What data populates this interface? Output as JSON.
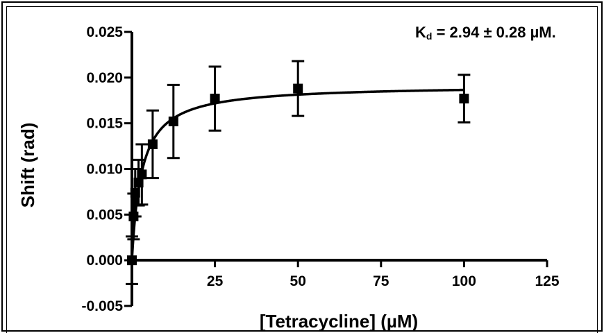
{
  "annotation": {
    "k": "K",
    "sub": "d",
    "rest": " = 2.94 ± 0.28 µM."
  },
  "chart_data": {
    "type": "scatter",
    "title": "",
    "xlabel": "[Tetracycline] (µM)",
    "ylabel": "Shift (rad)",
    "xlim": [
      0,
      125
    ],
    "ylim": [
      -0.005,
      0.025
    ],
    "x_ticks": [
      25,
      50,
      75,
      100,
      125
    ],
    "x_tick_labels": [
      "25",
      "50",
      "75",
      "100",
      "125"
    ],
    "y_ticks": [
      -0.005,
      0,
      0.005,
      0.01,
      0.015,
      0.02,
      0.025
    ],
    "y_tick_labels": [
      "-0.005",
      "0.000",
      "0.005",
      "0.010",
      "0.015",
      "0.020",
      "0.025"
    ],
    "grid": false,
    "legend": "none",
    "series": [
      {
        "points": [
          {
            "x": 0,
            "y": 0.0,
            "err": 0.0026
          },
          {
            "x": 0.5,
            "y": 0.0048,
            "err": 0.0025
          },
          {
            "x": 1,
            "y": 0.0074,
            "err": 0.0026
          },
          {
            "x": 2,
            "y": 0.0085,
            "err": 0.0025
          },
          {
            "x": 3,
            "y": 0.0094,
            "err": 0.0033
          },
          {
            "x": 6.25,
            "y": 0.0127,
            "err": 0.0037
          },
          {
            "x": 12.5,
            "y": 0.0152,
            "err": 0.004
          },
          {
            "x": 25,
            "y": 0.0177,
            "err": 0.0035
          },
          {
            "x": 50,
            "y": 0.0188,
            "err": 0.003
          },
          {
            "x": 100,
            "y": 0.0177,
            "err": 0.0026
          }
        ]
      }
    ],
    "fit": {
      "model": "one-site binding",
      "bmax": 0.0192,
      "kd": 2.94
    },
    "colors": {
      "ink": "#000000",
      "background": "#ffffff"
    }
  }
}
